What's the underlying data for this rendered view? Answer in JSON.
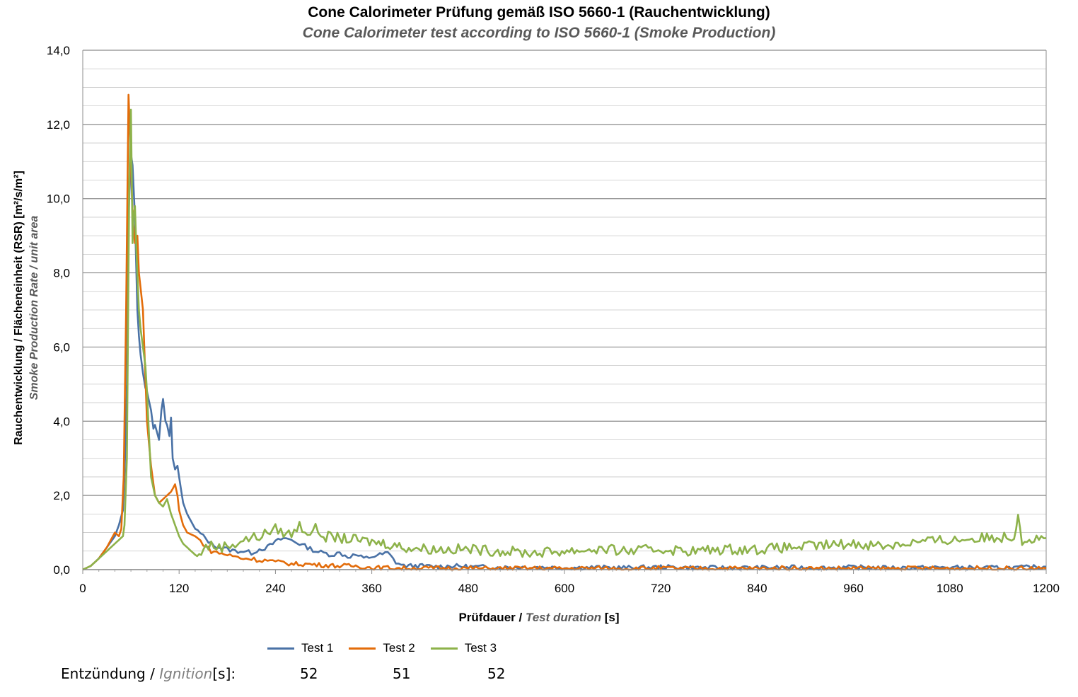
{
  "title": "Cone Calorimeter Prüfung gemäß ISO 5660-1 (Rauchentwicklung)",
  "subtitle": "Cone Calorimeter test according to ISO 5660-1 (Smoke Production)",
  "ylabel_de": "Rauchentwicklung / Flächeneinheit",
  "ylabel_en": "Smoke Production Rate / unit area",
  "ylabel_unit": "(RSR) [m²/s/m²]",
  "xlabel_de": "Prüfdauer /",
  "xlabel_en": "Test duration",
  "xlabel_unit": "[s]",
  "ignition_label_de": "Entzündung /",
  "ignition_label_en": "Ignition",
  "ignition_label_unit": "[s]:",
  "ignition_values": [
    "52",
    "51",
    "52"
  ],
  "colors": {
    "test1": "#4a72a6",
    "test2": "#e36c0a",
    "test3": "#8db24a",
    "grid": "#a6a6a6"
  },
  "chart_data": {
    "type": "line",
    "xlim": [
      0,
      1200
    ],
    "ylim": [
      0,
      14
    ],
    "x_ticks": [
      0,
      120,
      240,
      360,
      480,
      600,
      720,
      840,
      960,
      1080,
      1200
    ],
    "y_ticks": [
      "0,0",
      "2,0",
      "4,0",
      "6,0",
      "8,0",
      "10,0",
      "12,0",
      "14,0"
    ],
    "y_tick_values": [
      0,
      2,
      4,
      6,
      8,
      10,
      12,
      14
    ],
    "minor_grid_step": 0.5,
    "grid": true,
    "legend_position": "bottom",
    "series": [
      {
        "name": "Test  1",
        "color": "#4a72a6",
        "x": [
          0,
          10,
          20,
          30,
          40,
          45,
          50,
          52,
          55,
          57,
          60,
          62,
          65,
          68,
          70,
          72,
          75,
          78,
          80,
          85,
          88,
          90,
          95,
          98,
          100,
          103,
          105,
          108,
          110,
          112,
          115,
          118,
          120,
          125,
          130,
          135,
          140,
          150,
          160,
          170,
          180,
          190,
          200,
          210,
          220,
          230,
          240,
          250,
          260,
          270,
          280,
          290,
          300,
          310,
          320,
          330,
          340,
          350,
          360,
          370,
          380,
          390,
          400,
          420,
          440,
          460,
          480,
          520,
          560,
          600,
          640,
          680,
          720,
          760,
          800,
          840,
          880,
          920,
          960,
          1000,
          1040,
          1080,
          1120,
          1160,
          1200
        ],
        "y": [
          0,
          0.1,
          0.3,
          0.6,
          0.9,
          1.2,
          1.6,
          2.5,
          5.0,
          9.5,
          11.2,
          10.9,
          9.5,
          7.0,
          6.3,
          5.8,
          5.3,
          4.9,
          4.8,
          4.3,
          3.8,
          3.9,
          3.5,
          4.3,
          4.6,
          4.0,
          3.9,
          3.6,
          4.1,
          3.0,
          2.7,
          2.8,
          2.5,
          1.8,
          1.5,
          1.3,
          1.1,
          0.9,
          0.7,
          0.6,
          0.55,
          0.5,
          0.5,
          0.45,
          0.55,
          0.6,
          0.75,
          0.85,
          0.8,
          0.7,
          0.6,
          0.5,
          0.45,
          0.4,
          0.45,
          0.35,
          0.4,
          0.3,
          0.35,
          0.4,
          0.45,
          0.2,
          0.1,
          0.1,
          0.08,
          0.1,
          0.08,
          0.06,
          0.07,
          0.05,
          0.06,
          0.05,
          0.07,
          0.05,
          0.05,
          0.05,
          0.06,
          0.05,
          0.06,
          0.05,
          0.05,
          0.06,
          0.05,
          0.05,
          0.08
        ]
      },
      {
        "name": "Test  2",
        "color": "#e36c0a",
        "x": [
          0,
          10,
          20,
          30,
          35,
          40,
          45,
          48,
          51,
          54,
          57,
          60,
          62,
          65,
          68,
          70,
          72,
          75,
          78,
          80,
          85,
          90,
          95,
          100,
          105,
          110,
          115,
          118,
          120,
          125,
          130,
          140,
          150,
          160,
          170,
          180,
          190,
          200,
          210,
          220,
          230,
          240,
          250,
          260,
          280,
          300,
          320,
          340,
          360,
          380,
          400,
          440,
          480,
          520,
          560,
          600,
          640,
          680,
          720,
          760,
          800,
          840,
          880,
          920,
          960,
          1000,
          1040,
          1080,
          1120,
          1160,
          1200
        ],
        "y": [
          0,
          0.1,
          0.3,
          0.6,
          0.8,
          1.0,
          0.9,
          1.1,
          2.5,
          7.0,
          12.8,
          11.0,
          9.5,
          8.8,
          9.0,
          8.0,
          7.6,
          7.0,
          5.2,
          4.0,
          2.8,
          2.0,
          1.8,
          1.9,
          2.0,
          2.1,
          2.3,
          2.0,
          1.6,
          1.2,
          1.0,
          0.9,
          0.7,
          0.5,
          0.45,
          0.4,
          0.35,
          0.3,
          0.3,
          0.25,
          0.25,
          0.2,
          0.2,
          0.15,
          0.15,
          0.12,
          0.1,
          0.1,
          0.05,
          0.05,
          0.04,
          0.04,
          0.04,
          0.03,
          0.04,
          0.03,
          0.04,
          0.03,
          0.04,
          0.03,
          0.04,
          0.03,
          0.04,
          0.03,
          0.04,
          0.03,
          0.04,
          0.03,
          0.04,
          0.03,
          0.03
        ]
      },
      {
        "name": "Test  3",
        "color": "#8db24a",
        "x": [
          0,
          10,
          20,
          30,
          40,
          45,
          50,
          52,
          55,
          58,
          60,
          62,
          63,
          65,
          67,
          70,
          72,
          75,
          78,
          80,
          85,
          90,
          95,
          100,
          105,
          110,
          115,
          120,
          125,
          130,
          135,
          140,
          145,
          150,
          160,
          170,
          180,
          190,
          200,
          210,
          220,
          230,
          240,
          250,
          260,
          270,
          280,
          290,
          300,
          320,
          340,
          360,
          380,
          400,
          440,
          480,
          520,
          560,
          600,
          640,
          680,
          720,
          760,
          800,
          840,
          880,
          920,
          960,
          1000,
          1040,
          1080,
          1120,
          1160,
          1165,
          1170,
          1200
        ],
        "y": [
          0,
          0.1,
          0.3,
          0.5,
          0.7,
          0.8,
          0.9,
          1.2,
          3.0,
          10.5,
          12.4,
          8.8,
          9.5,
          9.8,
          8.5,
          7.0,
          6.5,
          6.0,
          5.5,
          4.8,
          2.5,
          2.0,
          1.8,
          1.7,
          1.9,
          1.5,
          1.2,
          0.9,
          0.7,
          0.6,
          0.5,
          0.4,
          0.35,
          0.6,
          0.65,
          0.6,
          0.65,
          0.7,
          0.8,
          0.85,
          0.9,
          1.0,
          1.1,
          1.0,
          0.95,
          1.2,
          1.0,
          1.1,
          0.9,
          0.85,
          0.8,
          0.75,
          0.7,
          0.6,
          0.55,
          0.55,
          0.5,
          0.45,
          0.5,
          0.55,
          0.5,
          0.55,
          0.5,
          0.55,
          0.55,
          0.6,
          0.65,
          0.7,
          0.65,
          0.75,
          0.8,
          0.85,
          0.9,
          1.5,
          0.8,
          0.85
        ]
      }
    ]
  }
}
